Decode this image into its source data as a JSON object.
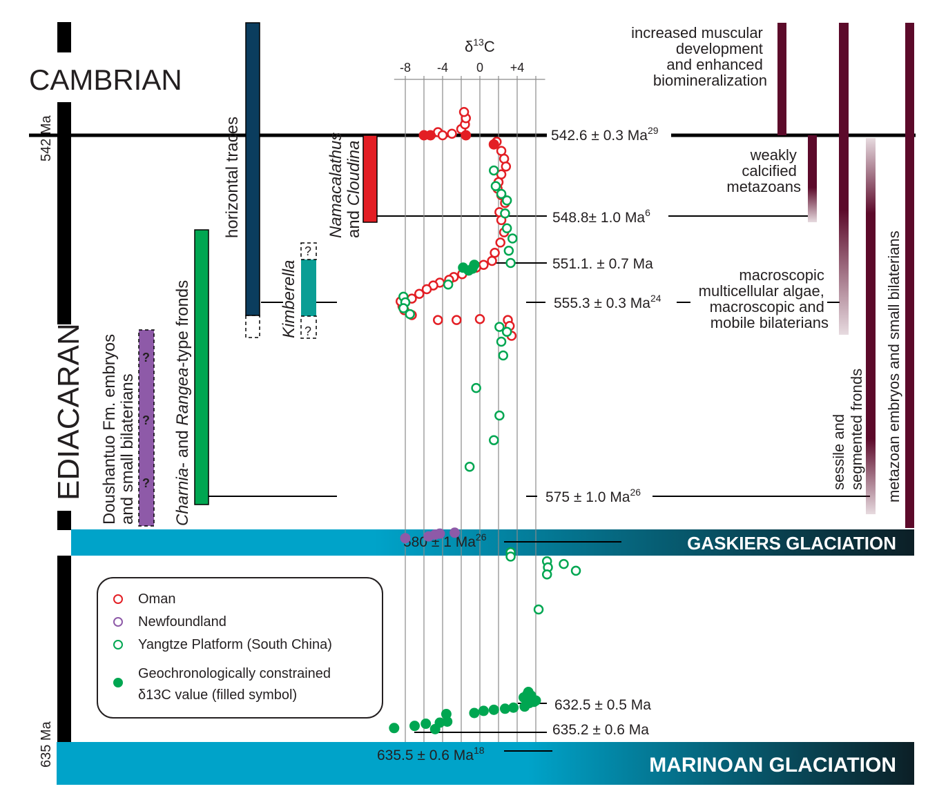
{
  "periods": {
    "cambrian": "CAMBRIAN",
    "ediacaran": "EDIACARAN"
  },
  "age_ticks": {
    "top": "542 Ma",
    "bottom": "635 Ma"
  },
  "axis": {
    "title_prefix": "δ",
    "title_sup": "13",
    "title_suffix": "C",
    "ticks": [
      "-8",
      "-4",
      "0",
      "+4"
    ]
  },
  "dates": [
    {
      "value": "542.6 ± 0.3 Ma",
      "ref": "29"
    },
    {
      "value": "548.8± 1.0 Ma",
      "ref": "6"
    },
    {
      "value": "551.1. ± 0.7 Ma",
      "ref": ""
    },
    {
      "value": "555.3 ± 0.3 Ma",
      "ref": "24"
    },
    {
      "value": "575 ± 1.0 Ma",
      "ref": "26"
    },
    {
      "value": "580 ± 1 Ma",
      "ref": "26"
    },
    {
      "value": "632.5 ± 0.5 Ma",
      "ref": ""
    },
    {
      "value": "635.2 ± 0.6 Ma",
      "ref": ""
    },
    {
      "value": "635.5 ± 0.6 Ma",
      "ref": "18"
    }
  ],
  "glaciations": {
    "gaskiers": "GASKIERS GLACIATION",
    "marinoan": "MARINOAN GLACIATION"
  },
  "fossil_ranges": {
    "horizontal_traces": "horizontal traces",
    "kimberella": "Kimberella",
    "unknown_mark": "?",
    "namacalathus_line1_italic": "Namacalathus",
    "namacalathus_line2_prefix": "and ",
    "namacalathus_line2_italic": "Cloudina",
    "charnia_italic1": "Charnia",
    "charnia_mid": "- and ",
    "charnia_italic2": "Rangea",
    "charnia_suffix": "-type fronds",
    "doushantuo_line1": "Doushantuo Fm. embryos",
    "doushantuo_line2": "and small bilaterians"
  },
  "right_annotations": {
    "muscular": [
      "increased muscular",
      "development",
      "and enhanced",
      "biomineralization"
    ],
    "weakly": [
      "weakly",
      "calcified",
      "metazoans"
    ],
    "algae": [
      "macroscopic",
      "multicellular algae,",
      "macroscopic and",
      "mobile bilaterians"
    ],
    "sessile": [
      "sessile and",
      "segmented fronds"
    ],
    "metazoan": "metazoan embryos and small bilaterians"
  },
  "legend": {
    "oman": "Oman",
    "newfoundland": "Newfoundland",
    "yangtze": "Yangtze Platform (South China)",
    "filled_line1": "Geochronologically constrained",
    "filled_line2": "δ13C value (filled symbol)"
  },
  "colors": {
    "oman": "#e31e24",
    "newfoundland": "#8e5aa8",
    "yangtze": "#00a651",
    "glaciation": "#00a3c9",
    "glaciation_dark": "#0c1f26",
    "traces": "#0b3d5e",
    "kimberella": "#0a9e95",
    "namacalathus": "#e31e24",
    "charnia": "#00a651",
    "doushantuo": "#8e5aa8",
    "maroon": "#5c0a2a"
  },
  "chart_data": {
    "type": "scatter",
    "xlabel": "δ13C",
    "xticks": [
      -8,
      -4,
      0,
      4
    ],
    "series": [
      {
        "name": "Oman",
        "marker": "open",
        "points": [
          [
            -4.5,
            542.4
          ],
          [
            -4,
            542.6
          ],
          [
            -3,
            542.5
          ],
          [
            -2,
            542.2
          ],
          [
            -1.6,
            541.9
          ],
          [
            -1.5,
            541.5
          ],
          [
            -1.7,
            541.1
          ],
          [
            1.8,
            543.1
          ],
          [
            2.3,
            543.8
          ],
          [
            2.6,
            544.4
          ],
          [
            2.8,
            545.0
          ],
          [
            2.3,
            545.6
          ],
          [
            2.0,
            546.2
          ],
          [
            1.9,
            546.7
          ],
          [
            2.3,
            547.2
          ],
          [
            2.7,
            547.8
          ],
          [
            2.1,
            548.5
          ],
          [
            2.3,
            549.0
          ],
          [
            2.6,
            549.6
          ],
          [
            2.2,
            550.1
          ],
          [
            1.6,
            550.6
          ],
          [
            1.3,
            551.0
          ],
          [
            0.4,
            551.3
          ],
          [
            -0.4,
            551.6
          ],
          [
            -1.2,
            551.9
          ],
          [
            -1.9,
            552.3
          ],
          [
            -2.8,
            552.6
          ],
          [
            -3.3,
            552.9
          ],
          [
            -4.3,
            553.2
          ],
          [
            -5.0,
            553.5
          ],
          [
            -5.7,
            553.9
          ],
          [
            -6.5,
            554.4
          ],
          [
            -7.3,
            554.9
          ],
          [
            -8.0,
            555.3
          ],
          [
            -8.3,
            555.7
          ],
          [
            -8.5,
            555.2
          ],
          [
            -8.1,
            556.1
          ],
          [
            -7.3,
            556.6
          ],
          [
            -4.5,
            557.1
          ],
          [
            -2.5,
            557.1
          ],
          [
            0,
            557.0
          ],
          [
            3.0,
            557.1
          ],
          [
            3.2,
            557.7
          ],
          [
            3.4,
            558.7
          ]
        ]
      },
      {
        "name": "Oman (filled)",
        "marker": "filled",
        "points": [
          [
            -6,
            542.6
          ],
          [
            -5.3,
            542.6
          ],
          [
            -1.5,
            542.6
          ],
          [
            1.5,
            543.3
          ]
        ]
      },
      {
        "name": "Newfoundland",
        "marker": "filled",
        "points": [
          [
            -8,
            579.6
          ],
          [
            -5.5,
            579.4
          ],
          [
            -4.8,
            579.2
          ],
          [
            -4.3,
            579.1
          ],
          [
            -2.7,
            579.0
          ]
        ]
      },
      {
        "name": "Yangtze Platform (South China)",
        "marker": "open",
        "points": [
          [
            1.5,
            545.3
          ],
          [
            1.7,
            546.5
          ],
          [
            2.3,
            547.1
          ],
          [
            2.9,
            547.6
          ],
          [
            2.7,
            548.6
          ],
          [
            2.9,
            549.4
          ],
          [
            3.5,
            549.9
          ],
          [
            3.1,
            550.5
          ],
          [
            3.3,
            551.1
          ],
          [
            -8.2,
            554.7
          ],
          [
            -8.0,
            555.3
          ],
          [
            -8.2,
            555.9
          ],
          [
            -7.5,
            556.5
          ],
          [
            -3.4,
            553.4
          ],
          [
            2.1,
            557.8
          ],
          [
            2.9,
            558.3
          ],
          [
            2.3,
            559.3
          ],
          [
            2.5,
            560.7
          ],
          [
            -0.4,
            564.0
          ],
          [
            2.1,
            566.8
          ],
          [
            1.5,
            569.3
          ],
          [
            -1.1,
            572.0
          ],
          [
            3.3,
            583.4
          ],
          [
            3.3,
            584.8
          ],
          [
            7.2,
            586.3
          ],
          [
            9.0,
            587.2
          ],
          [
            7.3,
            588.3
          ],
          [
            10.3,
            589.4
          ],
          [
            7.2,
            590.6
          ],
          [
            6.3,
            602.0
          ]
        ]
      },
      {
        "name": "Yangtze Platform (filled)",
        "marker": "filled",
        "points": [
          [
            -1.8,
            551.6
          ],
          [
            -1.2,
            551.9
          ],
          [
            -0.8,
            551.7
          ],
          [
            -0.6,
            551.3
          ],
          [
            5.2,
            628.8
          ],
          [
            5.1,
            629.5
          ],
          [
            5.5,
            630.0
          ],
          [
            4.7,
            630.6
          ],
          [
            5.3,
            631.2
          ],
          [
            6.0,
            631.6
          ],
          [
            5.8,
            632.0
          ],
          [
            5.3,
            632.4
          ],
          [
            4.8,
            632.8
          ],
          [
            3.6,
            632.9
          ],
          [
            2.7,
            633.0
          ],
          [
            1.5,
            633.1
          ],
          [
            0.4,
            633.2
          ],
          [
            -0.6,
            633.4
          ],
          [
            -3.6,
            633.5
          ],
          [
            -4.3,
            634.3
          ],
          [
            -5.8,
            634.4
          ],
          [
            -7.0,
            634.6
          ],
          [
            -3.5,
            634.2
          ],
          [
            -4.8,
            634.9
          ],
          [
            -9.2,
            634.8
          ]
        ]
      }
    ]
  }
}
